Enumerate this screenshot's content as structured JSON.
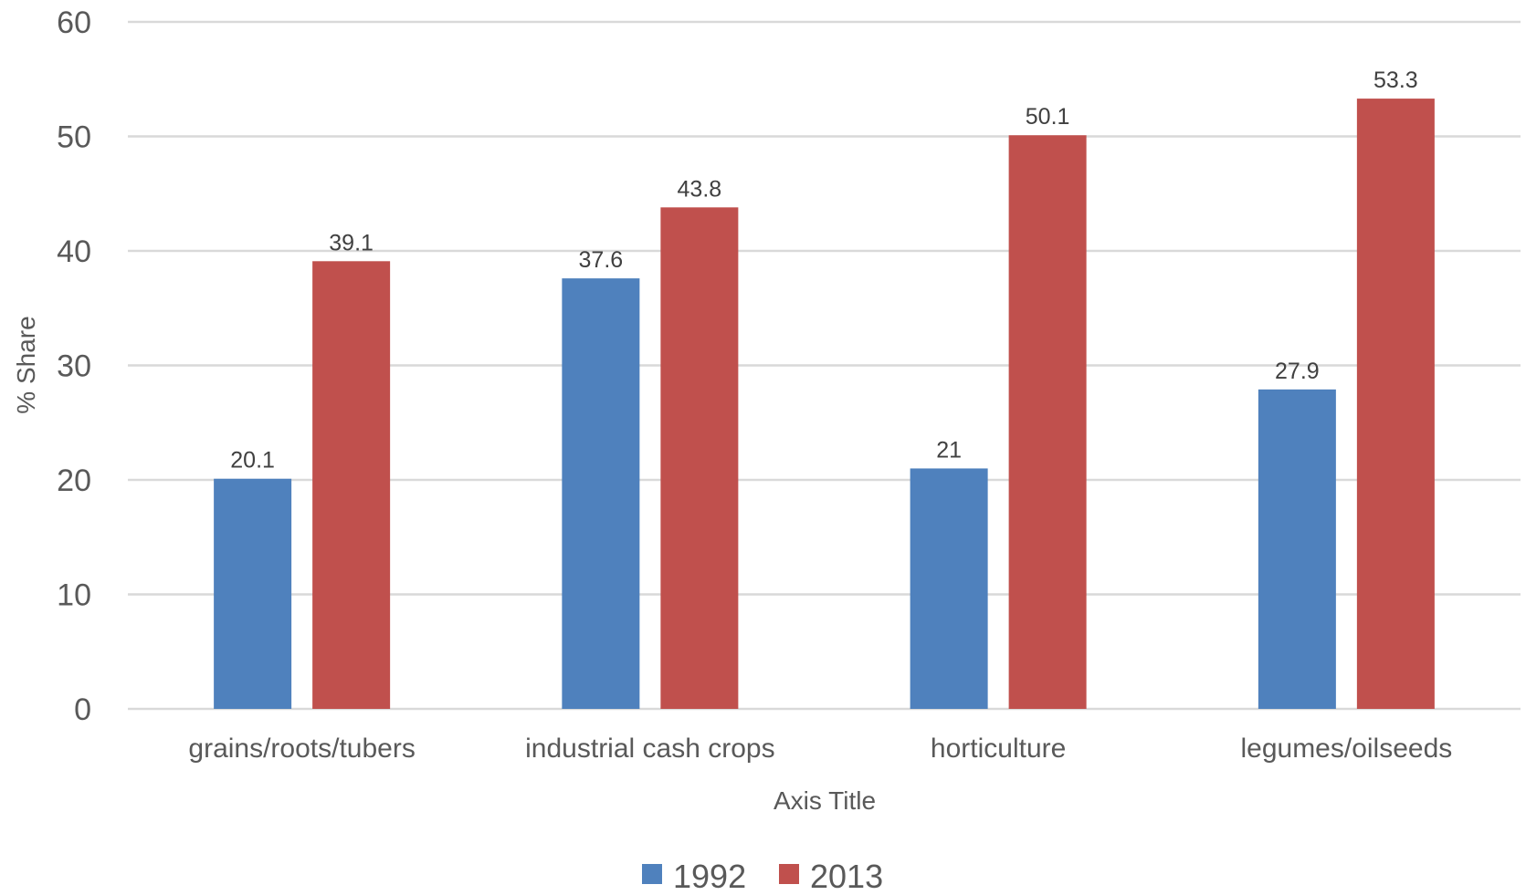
{
  "chart_data": {
    "type": "bar",
    "categories": [
      "grains/roots/tubers",
      "industrial cash crops",
      "horticulture",
      "legumes/oilseeds"
    ],
    "series": [
      {
        "name": "1992",
        "color": "#4F81BD",
        "values": [
          20.1,
          37.6,
          21,
          27.9
        ],
        "labels": [
          "20.1",
          "37.6",
          "21",
          "27.9"
        ]
      },
      {
        "name": "2013",
        "color": "#C0504D",
        "values": [
          39.1,
          43.8,
          50.1,
          53.3
        ],
        "labels": [
          "39.1",
          "43.8",
          "50.1",
          "53.3"
        ]
      }
    ],
    "xlabel": "Axis Title",
    "ylabel": "% Share",
    "ylim": [
      0,
      60
    ],
    "yticks": [
      0,
      10,
      20,
      30,
      40,
      50,
      60
    ],
    "grid": true,
    "legend_position": "bottom"
  }
}
